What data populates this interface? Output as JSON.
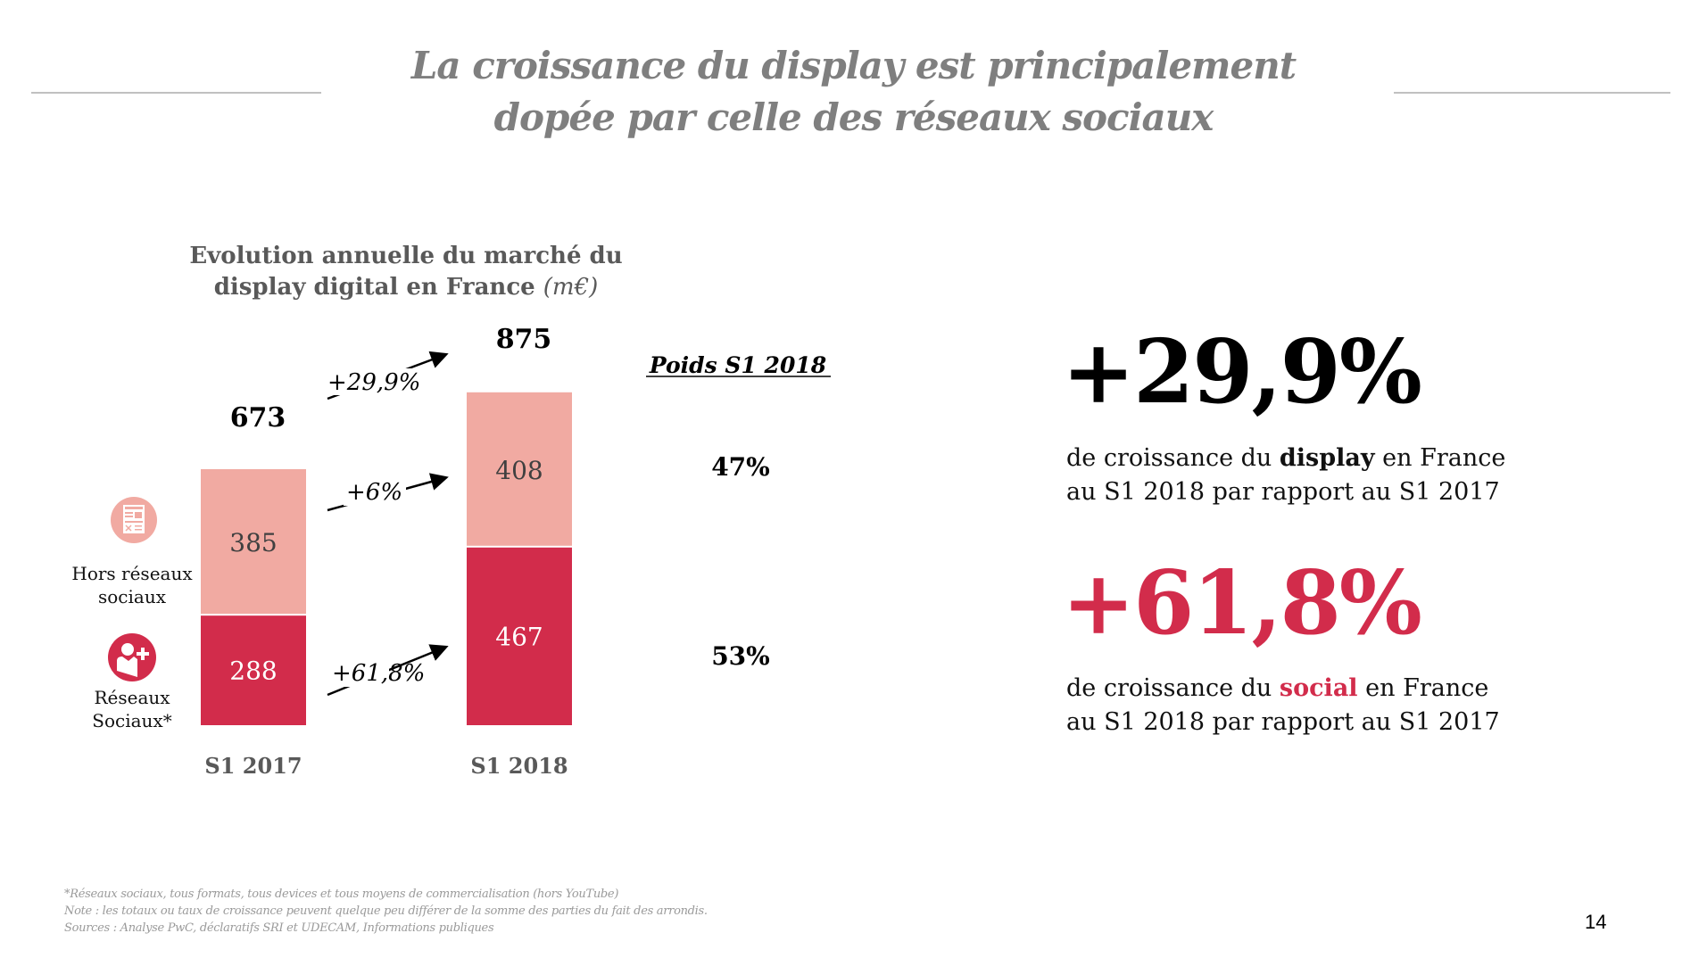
{
  "slide": {
    "title_line1": "La croissance du display est principalement",
    "title_line2": "dopée par celle des réseaux sociaux",
    "page_number": "14"
  },
  "colors": {
    "social": "#d22c4b",
    "non_social": "#f1aaa2",
    "title_gray": "#7f7f7f",
    "rule_gray": "#c0c0c0"
  },
  "chart_data": {
    "type": "bar",
    "stacked": true,
    "title": "Evolution annuelle du marché du display digital en France",
    "title_line1": "Evolution annuelle du marché du",
    "title_line2": "display digital en France",
    "unit": "(m€)",
    "categories": [
      "S1 2017",
      "S1 2018"
    ],
    "series": [
      {
        "name": "Réseaux Sociaux*",
        "label_line1": "Réseaux",
        "label_line2": "Sociaux*",
        "icon": "social-user-plus-icon",
        "color": "#d22c4b",
        "values": [
          288,
          467
        ],
        "growth": "+61,8%",
        "weight_2018": "53%"
      },
      {
        "name": "Hors réseaux sociaux",
        "label_line1": "Hors réseaux",
        "label_line2": "sociaux",
        "icon": "newsletter-icon",
        "color": "#f1aaa2",
        "values": [
          385,
          408
        ],
        "growth": "+6%",
        "weight_2018": "47%"
      }
    ],
    "totals": [
      673,
      875
    ],
    "total_growth": "+29,9%",
    "weights_header": "Poids S1 2018",
    "ylim": [
      0,
      875
    ],
    "grid": false,
    "legend": "left"
  },
  "kpis": [
    {
      "value": "+29,9%",
      "color": "#000000",
      "line1_pre": "de croissance du ",
      "line1_bold": "display",
      "line1_post": " en France",
      "line2": "au S1 2018 par rapport au S1 2017"
    },
    {
      "value": "+61,8%",
      "color": "#d22c4b",
      "line1_pre": "de croissance du ",
      "line1_bold": "social",
      "line1_post": " en France",
      "line2": "au S1 2018 par rapport au S1 2017"
    }
  ],
  "footnotes": [
    "*Réseaux sociaux, tous formats, tous devices et tous moyens de commercialisation (hors YouTube)",
    "Note : les totaux ou taux de croissance peuvent quelque peu différer de la somme des parties du fait des arrondis.",
    "Sources : Analyse PwC, déclaratifs SRI et UDECAM, Informations publiques"
  ]
}
